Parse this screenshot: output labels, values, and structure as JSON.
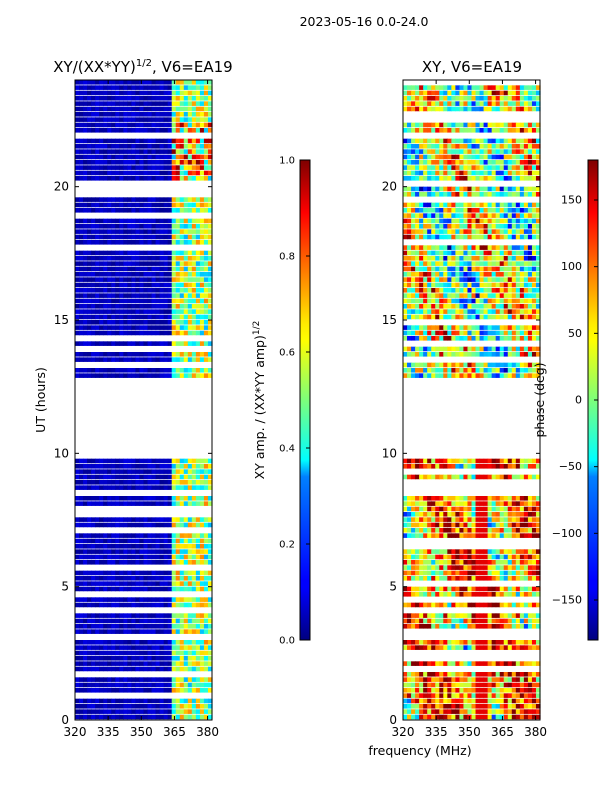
{
  "figure": {
    "suptitle": "2023-05-16 0.0-24.0",
    "shared_xlabel": "frequency (MHz)"
  },
  "chart_data": [
    {
      "type": "heatmap",
      "title": "XY/(XX*YY)",
      "title_sup": "1/2",
      "title_suffix": ", V6=EA19",
      "xlabel": "",
      "ylabel": "UT (hours)",
      "xlim": [
        320,
        382
      ],
      "ylim": [
        0,
        24
      ],
      "xticks": [
        320,
        335,
        350,
        365,
        380
      ],
      "yticks": [
        0,
        5,
        10,
        15,
        20
      ],
      "gap_ut": [
        9.9,
        12.8
      ],
      "active_band_mhz": [
        363,
        382
      ],
      "colorbar": {
        "label": "XY amp. / (XX*YY amp)",
        "label_sup": "1/2",
        "range": [
          0.0,
          1.0
        ],
        "ticks": [
          "0.0",
          "0.2",
          "0.4",
          "0.6",
          "0.8",
          "1.0"
        ],
        "colormap": "jet"
      }
    },
    {
      "type": "heatmap",
      "title": "XY, V6=EA19",
      "xlabel": "",
      "ylabel": "",
      "xlim": [
        320,
        382
      ],
      "ylim": [
        0,
        24
      ],
      "xticks": [
        320,
        335,
        350,
        365,
        380
      ],
      "yticks": [
        0,
        5,
        10,
        15,
        20
      ],
      "gap_ut": [
        9.9,
        12.8
      ],
      "colorbar": {
        "label": "phase (deg)",
        "range": [
          -180,
          180
        ],
        "ticks": [
          "−150",
          "−100",
          "−50",
          "0",
          "50",
          "100",
          "150"
        ],
        "colormap": "jet"
      }
    }
  ]
}
